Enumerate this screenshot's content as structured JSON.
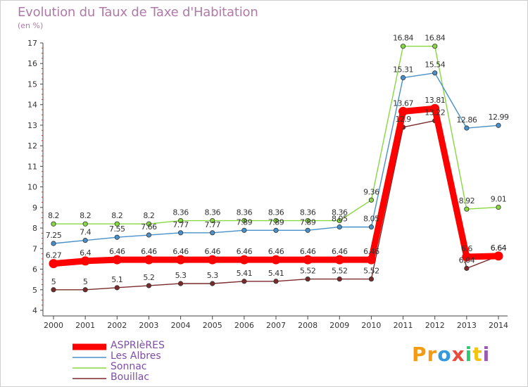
{
  "title": "Evolution du Taux de Taxe d'Habitation",
  "subtitle": "(en %)",
  "logo": {
    "text": "Proxiti",
    "colors": [
      "#f39c12",
      "#f39c12",
      "#3498db",
      "#e74c3c",
      "#2ecc71",
      "#f1c40f",
      "#9b59b6"
    ]
  },
  "chart_data": {
    "type": "line",
    "x": [
      "2000",
      "2001",
      "2002",
      "2003",
      "2004",
      "2005",
      "2006",
      "2007",
      "2008",
      "2009",
      "2010",
      "2011",
      "2012",
      "2013",
      "2014"
    ],
    "ylim": [
      4,
      17
    ],
    "yticks": [
      "4",
      "5",
      "6",
      "7",
      "8",
      "9",
      "10",
      "11",
      "12",
      "13",
      "14",
      "15",
      "16",
      "17"
    ],
    "grid": false,
    "legend_position": "bottom-left",
    "series": [
      {
        "name": "ASPRIèRES",
        "color": "#ff0000",
        "values": [
          6.27,
          6.4,
          6.46,
          6.46,
          6.46,
          6.46,
          6.46,
          6.46,
          6.46,
          6.46,
          6.46,
          13.67,
          13.81,
          6.6,
          6.64
        ],
        "labels": [
          "6.27",
          "6.4",
          "6.46",
          "6.46",
          "6.46",
          "6.46",
          "6.46",
          "6.46",
          "6.46",
          "6.46",
          "6.46",
          "13.67",
          "13.81",
          "6.6",
          "6.64"
        ]
      },
      {
        "name": "Les Albres",
        "color": "#4a90c8",
        "values": [
          7.25,
          7.4,
          7.55,
          7.66,
          7.77,
          7.77,
          7.89,
          7.89,
          7.89,
          8.05,
          8.05,
          15.31,
          15.54,
          12.86,
          12.99
        ],
        "labels": [
          "7.25",
          "7.4",
          "7.55",
          "7.66",
          "7.77",
          "7.77",
          "7.89",
          "7.89",
          "7.89",
          "8.05",
          "8.05",
          "15.31",
          "15.54",
          "12.86",
          "12.99"
        ]
      },
      {
        "name": "Sonnac",
        "color": "#88d840",
        "values": [
          8.2,
          8.2,
          8.2,
          8.2,
          8.36,
          8.36,
          8.36,
          8.36,
          8.36,
          8.36,
          9.36,
          16.84,
          16.84,
          8.92,
          9.01
        ],
        "labels": [
          "8.2",
          "8.2",
          "8.2",
          "8.2",
          "8.36",
          "8.36",
          "8.36",
          "8.36",
          "8.36",
          "8.36",
          "9.36",
          "16.84",
          "16.84",
          "8.92",
          "9.01"
        ]
      },
      {
        "name": "Bouillac",
        "color": "#7a2a2a",
        "values": [
          5,
          5,
          5.1,
          5.2,
          5.3,
          5.3,
          5.41,
          5.41,
          5.52,
          5.52,
          5.52,
          12.9,
          13.22,
          6.04,
          6.64
        ],
        "labels": [
          "5",
          "5",
          "5.1",
          "5.2",
          "5.3",
          "5.3",
          "5.41",
          "5.41",
          "5.52",
          "5.52",
          "5.52",
          "12.9",
          "13.22",
          "6.04",
          "6.64"
        ]
      }
    ]
  }
}
